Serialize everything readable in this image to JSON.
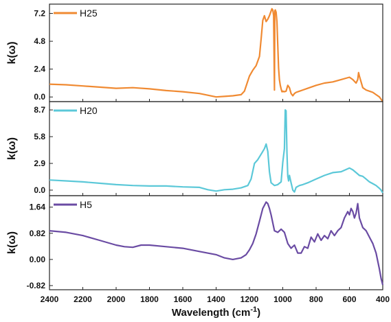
{
  "chart_data": {
    "type": "line",
    "x_axis": {
      "label_main": "Wavelength (cm",
      "label_sup": "-1",
      "label_end": ")",
      "range": [
        2400,
        400
      ],
      "reversed": true,
      "ticks": [
        "2400",
        "2200",
        "2000",
        "1800",
        "1600",
        "1400",
        "1200",
        "1000",
        "800",
        "600",
        "400"
      ]
    },
    "panels": [
      {
        "y_label": "k(ω)",
        "y_range": [
          -0.4,
          8.0
        ],
        "y_ticks": [
          "7.2",
          "4.8",
          "2.4",
          "0.0"
        ],
        "series": [
          {
            "name": "H25",
            "color": "#f08a32",
            "x": [
              2400,
              2300,
              2200,
              2100,
              2000,
              1900,
              1800,
              1700,
              1600,
              1500,
              1450,
              1400,
              1350,
              1300,
              1250,
              1230,
              1200,
              1180,
              1160,
              1140,
              1130,
              1120,
              1110,
              1100,
              1090,
              1080,
              1070,
              1065,
              1060,
              1055,
              1050,
              1048,
              1045,
              1040,
              1035,
              1030,
              1025,
              1020,
              1015,
              1010,
              1005,
              1000,
              990,
              980,
              970,
              960,
              950,
              940,
              930,
              920,
              900,
              880,
              850,
              800,
              750,
              700,
              650,
              600,
              580,
              560,
              550,
              545,
              540,
              520,
              500,
              480,
              460,
              440,
              420,
              410,
              400
            ],
            "values": [
              1.1,
              1.05,
              0.95,
              0.85,
              0.75,
              0.8,
              0.7,
              0.55,
              0.45,
              0.3,
              0.15,
              0.0,
              0.05,
              0.1,
              0.2,
              0.5,
              1.8,
              2.3,
              2.7,
              3.5,
              5.0,
              6.6,
              7.0,
              6.5,
              6.7,
              7.0,
              7.4,
              7.6,
              7.5,
              7.0,
              0.6,
              7.4,
              7.5,
              7.3,
              6.5,
              4.5,
              2.5,
              1.5,
              1.0,
              0.7,
              0.45,
              0.5,
              0.45,
              0.5,
              1.0,
              0.8,
              0.3,
              0.1,
              0.3,
              0.4,
              0.5,
              0.6,
              0.75,
              1.0,
              1.2,
              1.3,
              1.5,
              1.7,
              1.5,
              1.2,
              1.5,
              2.1,
              1.8,
              0.8,
              0.6,
              0.5,
              0.4,
              0.2,
              0.0,
              -0.2,
              -0.4
            ]
          }
        ]
      },
      {
        "y_label": "k(ω)",
        "y_range": [
          -0.6,
          9.6
        ],
        "y_ticks": [
          "8.7",
          "5.8",
          "2.9",
          "0.0"
        ],
        "series": [
          {
            "name": "H20",
            "color": "#5bc8d8",
            "x": [
              2400,
              2300,
              2200,
              2100,
              2000,
              1900,
              1800,
              1700,
              1600,
              1500,
              1450,
              1400,
              1350,
              1300,
              1250,
              1210,
              1190,
              1170,
              1150,
              1130,
              1110,
              1100,
              1090,
              1080,
              1070,
              1050,
              1030,
              1010,
              1000,
              990,
              985,
              980,
              975,
              970,
              965,
              960,
              950,
              940,
              930,
              920,
              900,
              880,
              850,
              800,
              750,
              700,
              650,
              600,
              580,
              560,
              540,
              520,
              500,
              480,
              460,
              440,
              420,
              410,
              400
            ],
            "values": [
              1.1,
              1.0,
              0.9,
              0.75,
              0.6,
              0.5,
              0.45,
              0.45,
              0.35,
              0.3,
              0.05,
              -0.1,
              0.05,
              0.1,
              0.25,
              0.5,
              1.2,
              2.9,
              3.3,
              3.9,
              4.5,
              5.0,
              4.2,
              2.0,
              0.8,
              0.5,
              0.6,
              0.9,
              3.0,
              4.5,
              8.7,
              8.6,
              4.0,
              1.5,
              1.0,
              1.6,
              0.8,
              0.0,
              -0.2,
              0.3,
              0.5,
              0.6,
              0.8,
              1.2,
              1.6,
              1.9,
              2.0,
              2.4,
              2.2,
              1.9,
              1.6,
              1.5,
              1.2,
              0.9,
              0.7,
              0.5,
              0.2,
              0.0,
              -0.3
            ]
          }
        ]
      },
      {
        "y_label": "k(ω)",
        "y_range": [
          -0.95,
          2.0
        ],
        "y_ticks": [
          "1.64",
          "0.82",
          "0.00",
          "-0.82"
        ],
        "series": [
          {
            "name": "H5",
            "color": "#6a4ba3",
            "x": [
              2400,
              2300,
              2200,
              2100,
              2000,
              1950,
              1900,
              1850,
              1800,
              1700,
              1600,
              1500,
              1400,
              1350,
              1300,
              1250,
              1220,
              1200,
              1180,
              1160,
              1140,
              1120,
              1100,
              1090,
              1080,
              1070,
              1050,
              1030,
              1010,
              1000,
              990,
              970,
              950,
              930,
              910,
              890,
              870,
              850,
              830,
              810,
              790,
              770,
              750,
              730,
              710,
              690,
              670,
              650,
              630,
              610,
              600,
              590,
              580,
              570,
              560,
              550,
              540,
              520,
              500,
              480,
              460,
              440,
              420,
              410,
              400
            ],
            "values": [
              0.9,
              0.85,
              0.75,
              0.6,
              0.45,
              0.4,
              0.38,
              0.45,
              0.45,
              0.4,
              0.35,
              0.25,
              0.15,
              0.05,
              0.0,
              0.05,
              0.15,
              0.3,
              0.5,
              0.8,
              1.2,
              1.6,
              1.8,
              1.75,
              1.6,
              1.4,
              0.9,
              0.85,
              0.95,
              0.9,
              0.85,
              0.5,
              0.35,
              0.45,
              0.2,
              0.2,
              0.4,
              0.35,
              0.7,
              0.55,
              0.8,
              0.6,
              0.75,
              0.65,
              0.9,
              0.75,
              0.9,
              1.0,
              1.3,
              1.5,
              1.4,
              1.6,
              1.5,
              1.3,
              1.45,
              1.75,
              1.3,
              1.0,
              0.9,
              0.7,
              0.5,
              0.2,
              -0.3,
              -0.6,
              -0.8
            ]
          }
        ]
      }
    ]
  }
}
